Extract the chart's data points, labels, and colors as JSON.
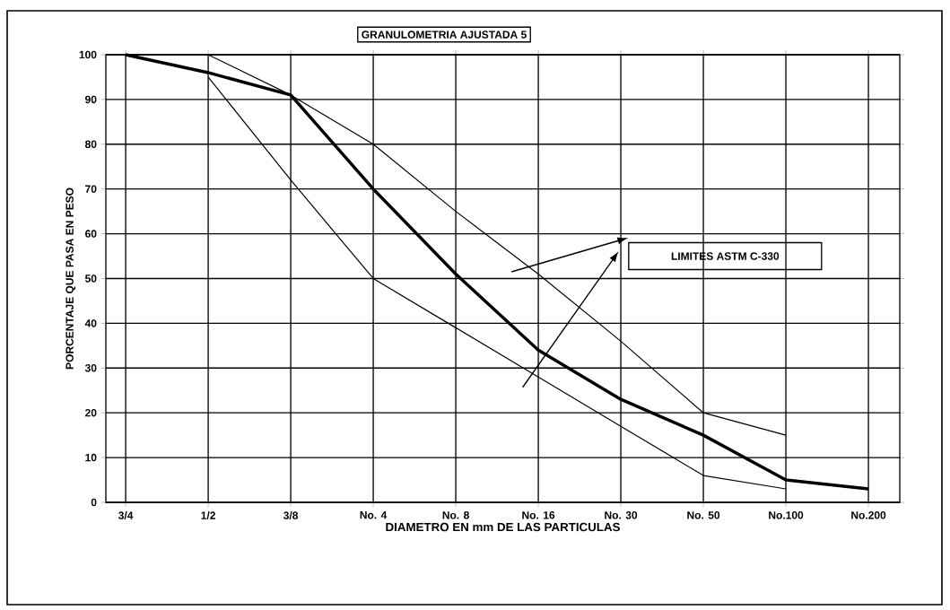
{
  "chart_data": {
    "type": "line",
    "title": "GRANULOMETRIA AJUSTADA 5",
    "xlabel": "DIAMETRO EN mm DE LAS PARTICULAS",
    "ylabel": "PORCENTAJE QUE PASA EN PESO",
    "categories": [
      "3/4",
      "1/2",
      "3/8",
      "No. 4",
      "No. 8",
      "No. 16",
      "No. 30",
      "No. 50",
      "No.100",
      "No.200"
    ],
    "series": [
      {
        "color": "#000000",
        "values": [
          100,
          96,
          91,
          70,
          51,
          34,
          23,
          15,
          5,
          3
        ]
      },
      {
        "color": "#000000",
        "values": [
          null,
          100,
          91,
          80,
          65,
          51,
          36,
          20,
          15,
          null
        ]
      },
      {
        "color": "#000000",
        "values": [
          null,
          95,
          72,
          50,
          39,
          28,
          17,
          6,
          3,
          null
        ]
      }
    ],
    "ylim": [
      0,
      100
    ],
    "yticks": [
      0,
      10,
      20,
      30,
      40,
      50,
      60,
      70,
      80,
      90,
      100
    ],
    "grid": true,
    "marker": "none",
    "line_style": "solid",
    "annotations": [
      "LIMITES ASTM C-330"
    ]
  }
}
